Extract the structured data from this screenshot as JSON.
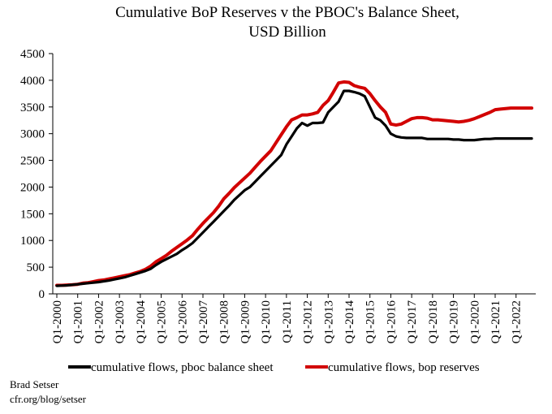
{
  "chart_data": {
    "type": "line",
    "title": "Cumulative BoP Reserves v the  PBOC's Balance Sheet,",
    "subtitle": "USD Billion",
    "ylim": [
      0,
      4500
    ],
    "yticks": [
      0,
      500,
      1000,
      1500,
      2000,
      2500,
      3000,
      3500,
      4000,
      4500
    ],
    "xtick_labels": [
      "Q1-2000",
      "Q1-2001",
      "Q1-2002",
      "Q1-2003",
      "Q1-2004",
      "Q1-2005",
      "Q1-2006",
      "Q1-2007",
      "Q1-2008",
      "Q1-2009",
      "Q1-2010",
      "Q1-2011",
      "Q1-2012",
      "Q1-2013",
      "Q1-2014",
      "Q1-2015",
      "Q1-2016",
      "Q1-2017",
      "Q1-2018",
      "Q1-2019",
      "Q1-2020",
      "Q1-2021",
      "Q1-2022"
    ],
    "x_start": "Q1-2000",
    "x_end": "Q4-2022",
    "grid": false,
    "legend_position": "bottom",
    "series": [
      {
        "name": "cumulative flows, pboc balance sheet",
        "color": "#000000",
        "values": [
          150,
          155,
          160,
          170,
          180,
          190,
          200,
          210,
          220,
          235,
          250,
          270,
          290,
          310,
          340,
          370,
          400,
          430,
          470,
          540,
          600,
          650,
          700,
          750,
          820,
          880,
          950,
          1050,
          1150,
          1250,
          1350,
          1450,
          1550,
          1650,
          1760,
          1850,
          1940,
          2000,
          2100,
          2200,
          2300,
          2400,
          2500,
          2600,
          2800,
          2950,
          3100,
          3200,
          3150,
          3200,
          3200,
          3210,
          3400,
          3500,
          3600,
          3800,
          3800,
          3780,
          3750,
          3700,
          3500,
          3300,
          3250,
          3150,
          3000,
          2950,
          2930,
          2920,
          2920,
          2920,
          2920,
          2900,
          2900,
          2900,
          2900,
          2900,
          2890,
          2890,
          2880,
          2880,
          2880,
          2890,
          2900,
          2900,
          2910,
          2910,
          2910,
          2910,
          2910,
          2910,
          2910,
          2910
        ]
      },
      {
        "name": "cumulative flows, bop reserves",
        "color": "#d20000",
        "values": [
          160,
          160,
          165,
          170,
          180,
          200,
          210,
          230,
          250,
          260,
          280,
          300,
          320,
          340,
          360,
          390,
          420,
          460,
          520,
          600,
          660,
          720,
          800,
          870,
          940,
          1010,
          1090,
          1210,
          1320,
          1420,
          1520,
          1640,
          1780,
          1880,
          1990,
          2080,
          2170,
          2260,
          2370,
          2480,
          2580,
          2680,
          2830,
          2980,
          3130,
          3260,
          3300,
          3350,
          3350,
          3370,
          3400,
          3530,
          3620,
          3780,
          3950,
          3970,
          3960,
          3900,
          3870,
          3850,
          3750,
          3620,
          3500,
          3400,
          3180,
          3160,
          3180,
          3230,
          3280,
          3300,
          3300,
          3290,
          3260,
          3260,
          3250,
          3240,
          3230,
          3220,
          3230,
          3250,
          3280,
          3320,
          3360,
          3400,
          3450,
          3460,
          3470,
          3480,
          3480,
          3480,
          3480,
          3480
        ]
      }
    ]
  },
  "credit": {
    "author": "Brad Setser",
    "url": "cfr.org/blog/setser"
  }
}
